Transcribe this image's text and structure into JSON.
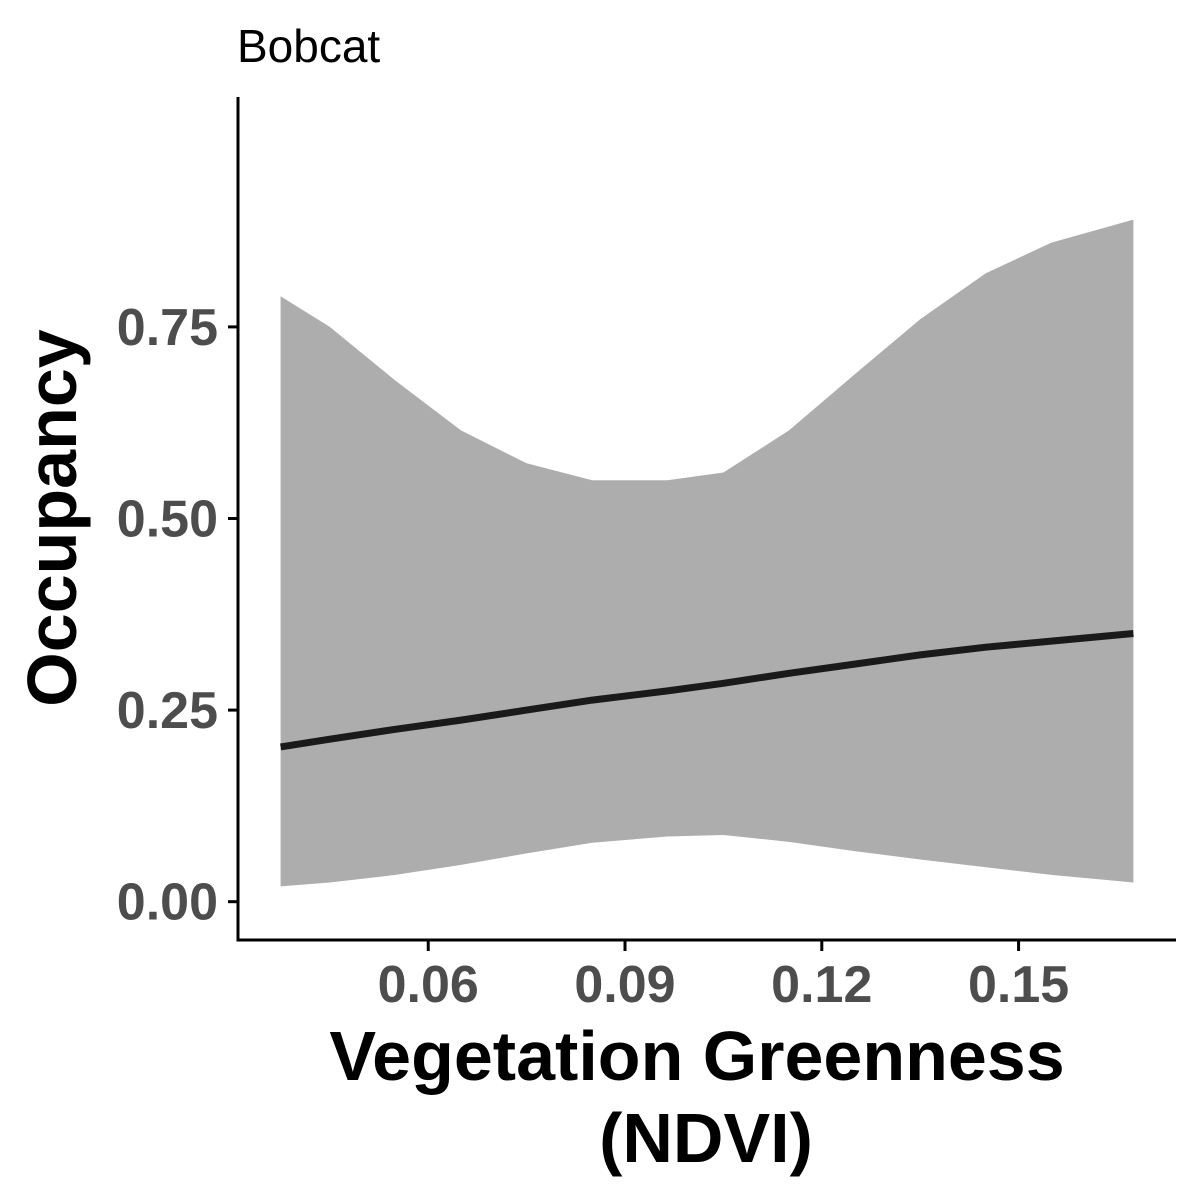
{
  "chart_data": {
    "type": "line",
    "title": "Bobcat",
    "xlabel_lines": [
      "Vegetation Greenness",
      "(NDVI)"
    ],
    "ylabel": "Occupancy",
    "xlim": [
      0.031,
      0.174
    ],
    "ylim": [
      -0.05,
      1.05
    ],
    "x_ticks": [
      0.06,
      0.09,
      0.12,
      0.15
    ],
    "x_tick_labels": [
      "0.06",
      "0.09",
      "0.12",
      "0.15"
    ],
    "y_ticks": [
      0.0,
      0.25,
      0.5,
      0.75
    ],
    "y_tick_labels": [
      "0.00",
      "0.25",
      "0.50",
      "0.75"
    ],
    "grid": false,
    "colors": {
      "line": "#1a1a1a",
      "ribbon": "#adadad",
      "axis": "#000000",
      "tick_label": "#4d4d4d"
    },
    "series": [
      {
        "x": [
          0.0375,
          0.045,
          0.055,
          0.065,
          0.075,
          0.085,
          0.0965,
          0.105,
          0.115,
          0.125,
          0.135,
          0.145,
          0.155,
          0.1675
        ],
        "y": [
          0.202,
          0.212,
          0.225,
          0.237,
          0.25,
          0.263,
          0.275,
          0.285,
          0.298,
          0.31,
          0.322,
          0.332,
          0.34,
          0.35
        ],
        "lower": [
          0.02,
          0.025,
          0.035,
          0.048,
          0.063,
          0.077,
          0.085,
          0.087,
          0.078,
          0.066,
          0.055,
          0.045,
          0.035,
          0.025
        ],
        "upper": [
          0.79,
          0.75,
          0.68,
          0.615,
          0.572,
          0.55,
          0.55,
          0.56,
          0.615,
          0.688,
          0.76,
          0.82,
          0.86,
          0.89
        ]
      }
    ]
  }
}
